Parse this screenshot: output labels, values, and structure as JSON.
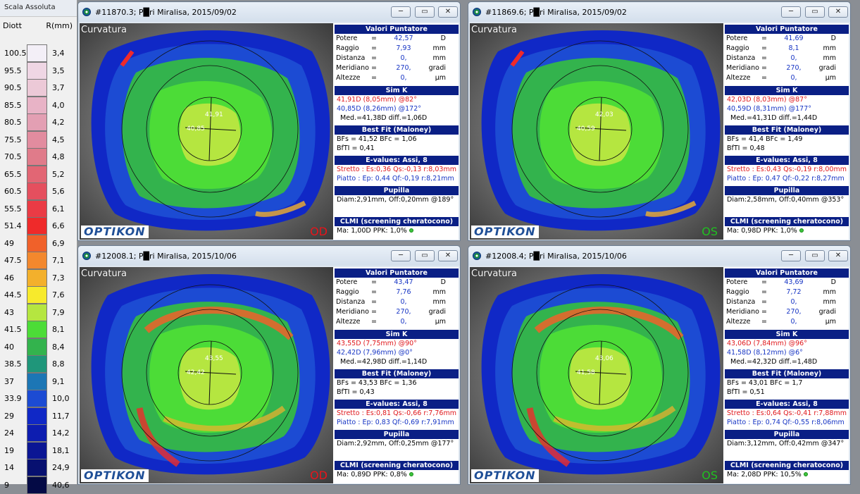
{
  "scale": {
    "title": "Scala Assoluta",
    "col_diott": "Diott",
    "col_r": "R(mm)",
    "rows": [
      {
        "d": "100.5",
        "r": "3,4",
        "c": "#f3eff7"
      },
      {
        "d": "95.5",
        "r": "3,5",
        "c": "#efd6e4"
      },
      {
        "d": "90.5",
        "r": "3,7",
        "c": "#ecc9d7"
      },
      {
        "d": "85.5",
        "r": "4,0",
        "c": "#e8b3c6"
      },
      {
        "d": "80.5",
        "r": "4,2",
        "c": "#e39fb3"
      },
      {
        "d": "75.5",
        "r": "4,5",
        "c": "#e28c9f"
      },
      {
        "d": "70.5",
        "r": "4,8",
        "c": "#e07b8a"
      },
      {
        "d": "65.5",
        "r": "5,2",
        "c": "#e26674"
      },
      {
        "d": "60.5",
        "r": "5,6",
        "c": "#e54f5e"
      },
      {
        "d": "55.5",
        "r": "6,1",
        "c": "#ea3b45"
      },
      {
        "d": "51.4",
        "r": "6,6",
        "c": "#ef2a2a"
      },
      {
        "d": "49",
        "r": "6,9",
        "c": "#f0612a"
      },
      {
        "d": "47.5",
        "r": "7,1",
        "c": "#f3882d"
      },
      {
        "d": "46",
        "r": "7,3",
        "c": "#f3b02c"
      },
      {
        "d": "44.5",
        "r": "7,6",
        "c": "#f7ea2c"
      },
      {
        "d": "43",
        "r": "7,9",
        "c": "#b5e640"
      },
      {
        "d": "41.5",
        "r": "8,1",
        "c": "#4cdc37"
      },
      {
        "d": "40",
        "r": "8,4",
        "c": "#33b34d"
      },
      {
        "d": "38.5",
        "r": "8,8",
        "c": "#1f967a"
      },
      {
        "d": "37",
        "r": "9,1",
        "c": "#1c76b5"
      },
      {
        "d": "33.9",
        "r": "10,0",
        "c": "#1c4bd3"
      },
      {
        "d": "29",
        "r": "11,7",
        "c": "#1028c6"
      },
      {
        "d": "24",
        "r": "14,2",
        "c": "#0d1db0"
      },
      {
        "d": "19",
        "r": "18,1",
        "c": "#0b1694"
      },
      {
        "d": "14",
        "r": "24,9",
        "c": "#071070"
      },
      {
        "d": "9",
        "r": "40,6",
        "c": "#040a45"
      }
    ]
  },
  "labels": {
    "curvatura": "Curvatura",
    "logo": "OPTIKON",
    "valori_header": "Valori Puntatore",
    "potere": "Potere",
    "raggio": "Raggio",
    "distanza": "Distanza",
    "meridiano": "Meridiano",
    "altezze": "Altezze",
    "eq": "=",
    "u_d": "D",
    "u_mm": "mm",
    "u_gradi": "gradi",
    "u_um": "µm",
    "simk_header": "Sim K",
    "bestfit_header": "Best Fit (Maloney)",
    "evalues_header": "E-values: Assi, 8",
    "pupilla_header": "Pupilla",
    "clmi_header": "CLMI (screening cheratocono)",
    "minimize": "─",
    "maximize": "▭",
    "close": "✕"
  },
  "windows": [
    {
      "title": "#11870.3; P█ri Miralisa, 2015/09/02",
      "eye": "OD",
      "eye_color": "#e8141a",
      "potere": "42,57",
      "raggio": "7,93",
      "distanza": "0,",
      "meridiano": "270,",
      "altezze": "0,",
      "simk1": "41,91D (8,05mm) @82°",
      "simk2": "40,85D (8,26mm) @172°",
      "simk3": "Med.=41,38D  diff.=1,06D",
      "bf1": "BFs = 41,52 BFc = 1,06",
      "bf2": "BfTI = 0,41",
      "ev1": "Stretto : Es:0,36 Qs:-0,13 r:8,03mm",
      "ev2": "Piatto   : Ep: 0,44 Qf:-0,19 r:8,21mm",
      "pup": "Diam:2,91mm, Off:0,20mm @189°",
      "clmi": "Ma: 1,00D   PPK: 1,0%",
      "center_top": "41,91",
      "center_left": "40,85"
    },
    {
      "title": "#11869.6; P█ri Miralisa, 2015/09/02",
      "eye": "OS",
      "eye_color": "#20c020",
      "potere": "41,69",
      "raggio": "8,1",
      "distanza": "0,",
      "meridiano": "270,",
      "altezze": "0,",
      "simk1": "42,03D (8,03mm) @87°",
      "simk2": "40,59D (8,31mm) @177°",
      "simk3": "Med.=41,31D  diff.=1,44D",
      "bf1": "BFs = 41,4 BFc = 1,49",
      "bf2": "BfTI = 0,48",
      "ev1": "Stretto : Es:0,43 Qs:-0,19 r:8,00mm",
      "ev2": "Piatto   : Ep: 0,47 Qf:-0,22 r:8,27mm",
      "pup": "Diam:2,58mm, Off:0,40mm @353°",
      "clmi": "Ma: 0,98D   PPK: 1,0%",
      "center_top": "42,03",
      "center_left": "40,59"
    },
    {
      "title": "#12008.1; P█ri Miralisa, 2015/10/06",
      "eye": "OD",
      "eye_color": "#e8141a",
      "potere": "43,47",
      "raggio": "7,76",
      "distanza": "0,",
      "meridiano": "270,",
      "altezze": "0,",
      "simk1": "43,55D (7,75mm) @90°",
      "simk2": "42,42D (7,96mm) @0°",
      "simk3": "Med.=42,98D  diff.=1,14D",
      "bf1": "BFs = 43,53 BFc = 1,36",
      "bf2": "BfTI = 0,43",
      "ev1": "Stretto : Es:0,81 Qs:-0,66 r:7,76mm",
      "ev2": "Piatto   : Ep: 0,83 Qf:-0,69 r:7,91mm",
      "pup": "Diam:2,92mm, Off:0,25mm @177°",
      "clmi": "Ma: 0,89D   PPK: 0,8%",
      "center_top": "43,55",
      "center_left": "42,42"
    },
    {
      "title": "#12008.4; P█ri Miralisa, 2015/10/06",
      "eye": "OS",
      "eye_color": "#20c020",
      "potere": "43,69",
      "raggio": "7,72",
      "distanza": "0,",
      "meridiano": "270,",
      "altezze": "0,",
      "simk1": "43,06D (7,84mm) @96°",
      "simk2": "41,58D (8,12mm) @6°",
      "simk3": "Med.=42,32D  diff.=1,48D",
      "bf1": "BFs = 43,01 BFc = 1,7",
      "bf2": "BfTI = 0,51",
      "ev1": "Stretto : Es:0,64 Qs:-0,41 r:7,88mm",
      "ev2": "Piatto   : Ep: 0,74 Qf:-0,55 r:8,06mm",
      "pup": "Diam:3,12mm, Off:0,42mm @347°",
      "clmi": "Ma: 2,08D   PPK: 10,5%",
      "center_top": "43,06",
      "center_left": "41,58"
    }
  ]
}
